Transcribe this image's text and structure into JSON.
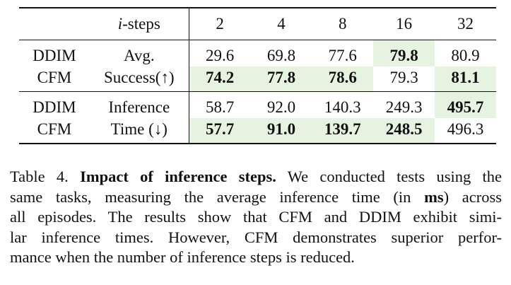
{
  "table": {
    "header": {
      "steps_var": "i",
      "steps_label": "-steps",
      "steps": [
        "2",
        "4",
        "8",
        "16",
        "32"
      ]
    },
    "sections": [
      {
        "metric_lines": [
          "Avg.",
          "Success(↑)"
        ],
        "rows": [
          {
            "method": "DDIM",
            "values": [
              "29.6",
              "69.8",
              "77.6",
              "79.8",
              "80.9"
            ]
          },
          {
            "method": "CFM",
            "values": [
              "74.2",
              "77.8",
              "78.6",
              "79.3",
              "81.1"
            ]
          }
        ]
      },
      {
        "metric_lines": [
          "Inference",
          "Time (↓)"
        ],
        "rows": [
          {
            "method": "DDIM",
            "values": [
              "58.7",
              "92.0",
              "140.3",
              "249.3",
              "495.7"
            ]
          },
          {
            "method": "CFM",
            "values": [
              "57.7",
              "91.0",
              "139.7",
              "248.5",
              "496.3"
            ]
          }
        ]
      }
    ]
  },
  "caption": {
    "label": "Table 4.",
    "title": "Impact of inference steps.",
    "l1": "We conducted tests using the",
    "l2a": "same tasks, measuring the average inference time (in",
    "l2b": "ms",
    "l2c": ") across",
    "l3": "all episodes. The results show that CFM and DDIM exhibit simi-",
    "l4": "lar inference times. However, CFM demonstrates superior perfor-",
    "l5": "mance when the number of inference steps is reduced."
  }
}
